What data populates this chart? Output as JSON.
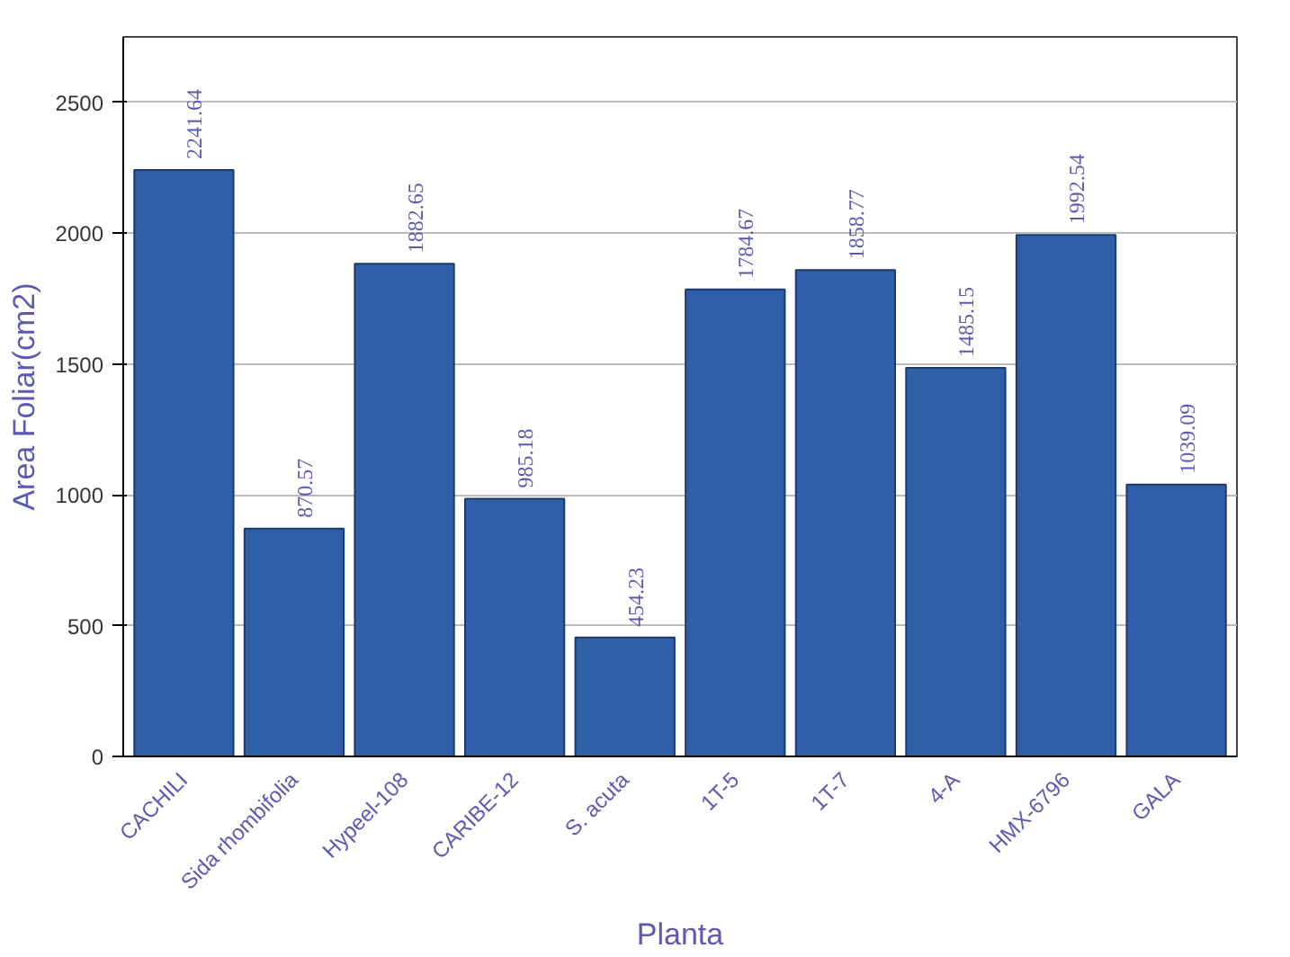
{
  "chart_data": {
    "type": "bar",
    "xlabel": "Planta",
    "ylabel": "Area Foliar(cm2)",
    "categories": [
      "CACHILI",
      "Sida rhombifolia",
      "Hypeel-108",
      "CARIBE-12",
      "S. acuta",
      "1T-5",
      "1T-7",
      "4-A",
      "HMX-6796",
      "GALA"
    ],
    "values": [
      2241.64,
      870.57,
      1882.65,
      985.18,
      454.23,
      1784.67,
      1858.77,
      1485.15,
      1992.54,
      1039.09
    ],
    "color": "#2f5fa6",
    "ylim": [
      0,
      2750
    ],
    "yticks": [
      0,
      500,
      1000,
      1500,
      2000,
      2500
    ],
    "grid": "y",
    "data_labels": true
  }
}
